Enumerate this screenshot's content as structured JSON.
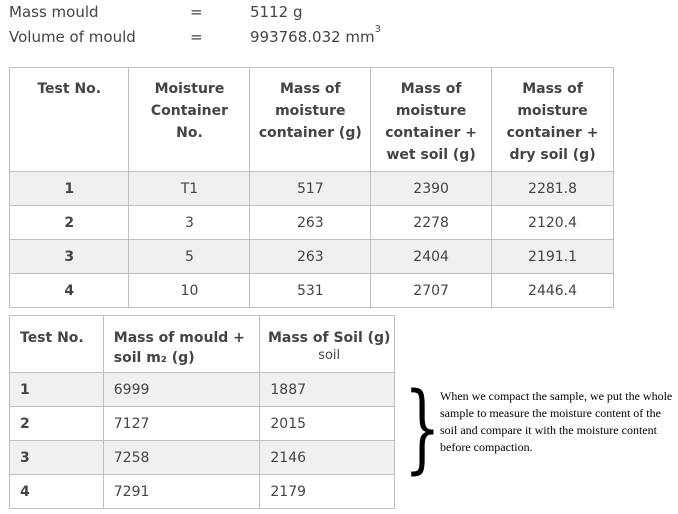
{
  "header": {
    "rows": [
      {
        "label": "Mass mould",
        "eq": "=",
        "value": "5112 g",
        "sup": ""
      },
      {
        "label": "Volume of mould",
        "eq": "=",
        "value": "993768.032 mm",
        "sup": "3"
      }
    ]
  },
  "table1": {
    "headers": [
      "Test No.",
      "Moisture Container No.",
      "Mass of moisture container (g)",
      "Mass of moisture container + wet soil (g)",
      "Mass of moisture container + dry soil (g)"
    ],
    "rows": [
      [
        "1",
        "T1",
        "517",
        "2390",
        "2281.8"
      ],
      [
        "2",
        "3",
        "263",
        "2278",
        "2120.4"
      ],
      [
        "3",
        "5",
        "263",
        "2404",
        "2191.1"
      ],
      [
        "4",
        "10",
        "531",
        "2707",
        "2446.4"
      ]
    ]
  },
  "table2": {
    "headers": [
      "Test No.",
      "Mass of mould + soil m₂ (g)",
      "Mass of Soil (g)"
    ],
    "header_sub": "soil",
    "rows": [
      [
        "1",
        "6999",
        "1887"
      ],
      [
        "2",
        "7127",
        "2015"
      ],
      [
        "3",
        "7258",
        "2146"
      ],
      [
        "4",
        "7291",
        "2179"
      ]
    ]
  },
  "note": {
    "brace": "}",
    "text": "When we compact the sample, we put the whole sample to measure the moisture content of the soil and compare it with the moisture content before compaction."
  }
}
